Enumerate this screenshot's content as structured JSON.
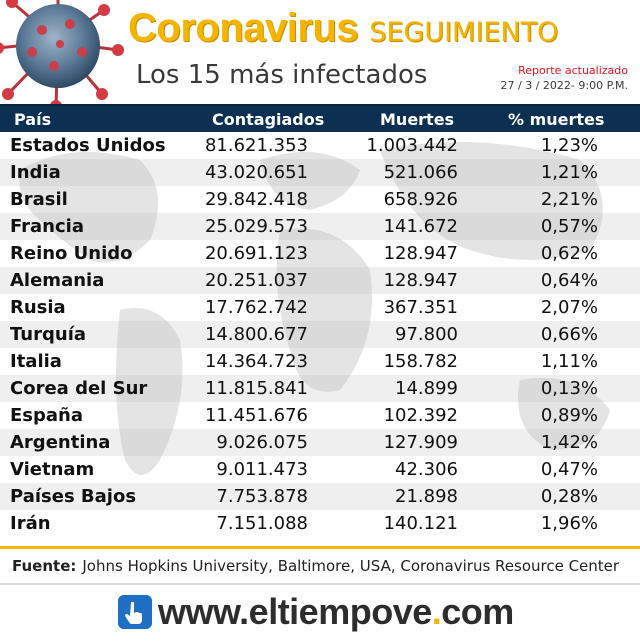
{
  "header": {
    "title_main": "Coronavirus",
    "title_sub": "SEGUIMIENTO",
    "subtitle": "Los 15 más infectados",
    "report_label": "Reporte actualizado",
    "report_date": "27 / 3 / 2022-   9:00 P.M."
  },
  "table": {
    "columns": [
      "País",
      "Contagiados",
      "Muertes",
      "% muertes"
    ],
    "rows": [
      {
        "country": "Estados Unidos",
        "cases": "81.621.353",
        "deaths": "1.003.442",
        "pct": "1,23%"
      },
      {
        "country": "India",
        "cases": "43.020.651",
        "deaths": "521.066",
        "pct": "1,21%"
      },
      {
        "country": "Brasil",
        "cases": "29.842.418",
        "deaths": "658.926",
        "pct": "2,21%"
      },
      {
        "country": "Francia",
        "cases": "25.029.573",
        "deaths": "141.672",
        "pct": "0,57%"
      },
      {
        "country": "Reino Unido",
        "cases": "20.691.123",
        "deaths": "128.947",
        "pct": "0,62%"
      },
      {
        "country": "Alemania",
        "cases": "20.251.037",
        "deaths": "128.947",
        "pct": "0,64%"
      },
      {
        "country": "Rusia",
        "cases": "17.762.742",
        "deaths": "367.351",
        "pct": "2,07%"
      },
      {
        "country": "Turquía",
        "cases": "14.800.677",
        "deaths": "97.800",
        "pct": "0,66%"
      },
      {
        "country": "Italia",
        "cases": "14.364.723",
        "deaths": "158.782",
        "pct": "1,11%"
      },
      {
        "country": "Corea del Sur",
        "cases": "11.815.841",
        "deaths": "14.899",
        "pct": "0,13%"
      },
      {
        "country": "España",
        "cases": "11.451.676",
        "deaths": "102.392",
        "pct": "0,89%"
      },
      {
        "country": "Argentina",
        "cases": "9.026.075",
        "deaths": "127.909",
        "pct": "1,42%"
      },
      {
        "country": "Vietnam",
        "cases": "9.011.473",
        "deaths": "42.306",
        "pct": "0,47%"
      },
      {
        "country": "Países Bajos",
        "cases": "7.753.878",
        "deaths": "21.898",
        "pct": "0,28%"
      },
      {
        "country": "Irán",
        "cases": "7.151.088",
        "deaths": "140.121",
        "pct": "1,96%"
      }
    ]
  },
  "footer": {
    "source_label": "Fuente:",
    "source_text": "Johns Hopkins University, Baltimore, USA, Coronavirus Resource Center",
    "url_prefix": "www.",
    "url_name": "eltiempove",
    "url_dot": ".",
    "url_suffix": "com"
  },
  "colors": {
    "accent": "#f5b400",
    "header_bar": "#0d2f52",
    "report_label": "#e0141e",
    "icon_blue": "#1f6fc4"
  },
  "icons": [
    "virus-icon",
    "world-map-icon",
    "hand-pointer-icon"
  ]
}
